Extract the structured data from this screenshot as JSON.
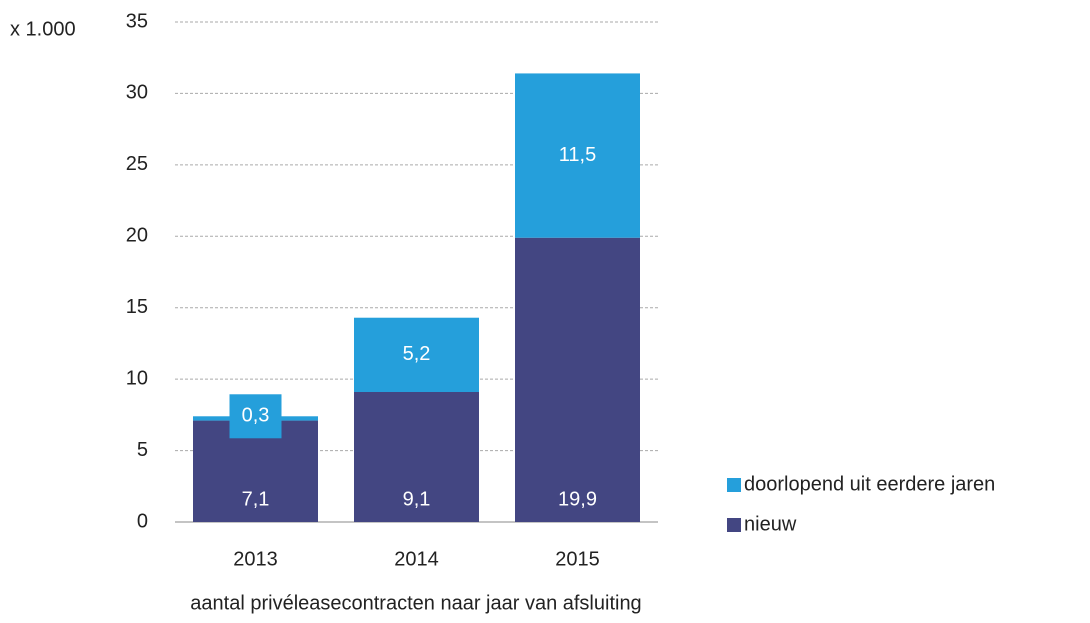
{
  "chart_data": {
    "type": "stacked_bar",
    "y_unit_label": "x 1.000",
    "x_axis_title": "aantal privéleasecontracten naar jaar van afsluiting",
    "categories": [
      "2013",
      "2014",
      "2015"
    ],
    "series": [
      {
        "name": "nieuw",
        "color": "#434682",
        "values": [
          7.1,
          9.1,
          19.9
        ],
        "value_labels": [
          "7,1",
          "9,1",
          "19,9"
        ]
      },
      {
        "name": "doorlopend uit eerdere jaren",
        "color": "#259fdb",
        "values": [
          0.3,
          5.2,
          11.5
        ],
        "value_labels": [
          "0,3",
          "5,2",
          "11,5"
        ]
      }
    ],
    "ylim": [
      0,
      35
    ],
    "yticks": [
      0,
      5,
      10,
      15,
      20,
      25,
      30,
      35
    ],
    "grid": true
  }
}
